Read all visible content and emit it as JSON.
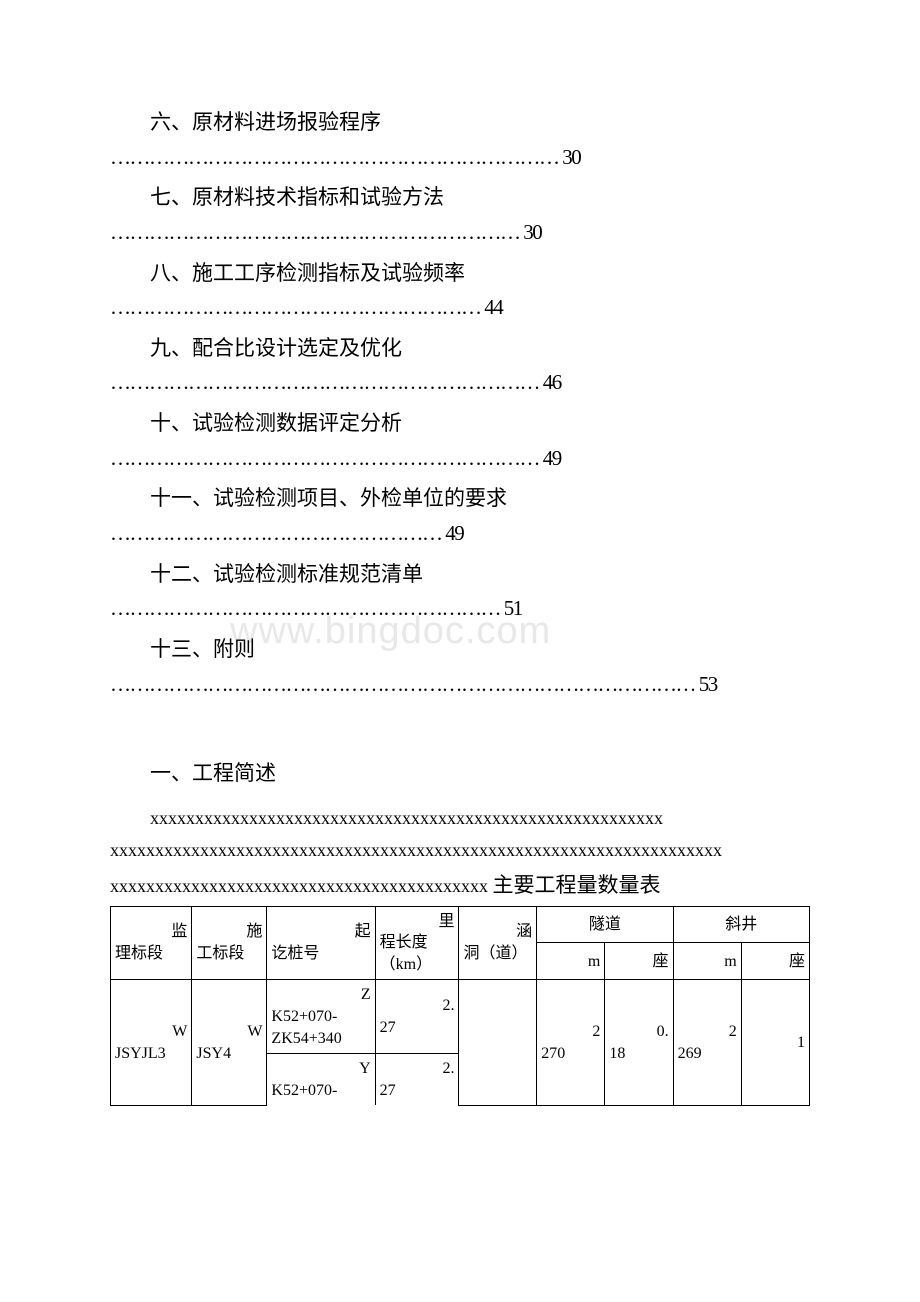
{
  "toc": [
    {
      "title": "六、原材料进场报验程序",
      "dots": "……………………………………………………………",
      "page": "30"
    },
    {
      "title": "七、原材料技术指标和试验方法",
      "dots": "………………………………………………………",
      "page": "30"
    },
    {
      "title": "八、施工工序检测指标及试验频率",
      "dots": "…………………………………………………",
      "page": "44"
    },
    {
      "title": "九、配合比设计选定及优化",
      "dots": "…………………………………………………………",
      "page": "46"
    },
    {
      "title": "十、试验检测数据评定分析",
      "dots": "…………………………………………………………",
      "page": "49"
    },
    {
      "title": "十一、试验检测项目、外检单位的要求",
      "dots": "……………………………………………",
      "page": "49"
    },
    {
      "title": "十二、试验检测标准规范清单",
      "dots": "……………………………………………………",
      "page": "51"
    },
    {
      "title": "十三、附则",
      "dots": "………………………………………………………………………………",
      "page": "53"
    }
  ],
  "watermark": "www.bingdoc.com",
  "section_heading": "一、工程简述",
  "body_line1": "xxxxxxxxxxxxxxxxxxxxxxxxxxxxxxxxxxxxxxxxxxxxxxxxxxxxxxxxx",
  "body_line2": "xxxxxxxxxxxxxxxxxxxxxxxxxxxxxxxxxxxxxxxxxxxxxxxxxxxxxxxxxxxxxxxxxxxx",
  "body_line3_prefix": "xxxxxxxxxxxxxxxxxxxxxxxxxxxxxxxxxxxxxxxxxx",
  "table_title": "主要工程量数量表",
  "table": {
    "headers": {
      "h1": "监理标段",
      "h1_a": "监",
      "h1_b": "理标段",
      "h2": "施工标段",
      "h2_a": "施",
      "h2_b": "工标段",
      "h3": "起讫桩号",
      "h3_a": "起",
      "h3_b": "讫桩号",
      "h4": "里程长度（km）",
      "h4_a": "里",
      "h4_b": "程长度（km）",
      "h5": "涵洞（道）",
      "h5_a": "涵",
      "h5_b": "洞（道）",
      "h6": "隧道",
      "h6_m": "m",
      "h6_seat": "座",
      "h7": "斜井",
      "h7_m": "m",
      "h7_seat": "座"
    },
    "rows": [
      {
        "c1": "WJSYJL3",
        "c1_a": "W",
        "c1_b": "JSYJL3",
        "c2": "WJSY4",
        "c2_a": "W",
        "c2_b": "JSY4",
        "c3a": "ZK52+070-ZK54+340",
        "c3a_a": "Z",
        "c3a_b": "K52+070-ZK54+340",
        "c3b": "YK52+070-",
        "c3b_a": "Y",
        "c3b_b": "K52+070-",
        "c4a": "2.27",
        "c4a_a": "2.",
        "c4a_b": "27",
        "c4b": "2.27",
        "c4b_a": "2.",
        "c4b_b": "27",
        "c5": "",
        "c6": "2270",
        "c6_a": "2",
        "c6_b": "270",
        "c7": "0.18",
        "c7_a": "0.",
        "c7_b": "18",
        "c8": "2269",
        "c8_a": "2",
        "c8_b": "269",
        "c9": "1"
      }
    ]
  }
}
